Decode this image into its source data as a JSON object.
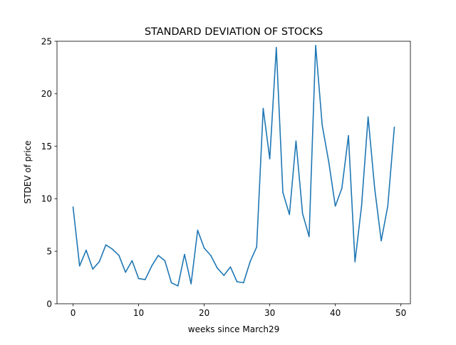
{
  "chart_data": {
    "type": "line",
    "title": "STANDARD DEVIATION OF STOCKS",
    "xlabel": "weeks since March29",
    "ylabel": "STDEV of price",
    "xlim": [
      -2.45,
      51.45
    ],
    "ylim": [
      0,
      25
    ],
    "xticks": [
      0,
      10,
      20,
      30,
      40,
      50
    ],
    "yticks": [
      0,
      5,
      10,
      15,
      20,
      25
    ],
    "grid": false,
    "series": [
      {
        "color": "#1f77b4",
        "x": [
          0,
          1,
          2,
          3,
          4,
          5,
          6,
          7,
          8,
          9,
          10,
          11,
          12,
          13,
          14,
          15,
          16,
          17,
          18,
          19,
          20,
          21,
          22,
          23,
          24,
          25,
          26,
          27,
          28,
          29,
          30,
          31,
          32,
          33,
          34,
          35,
          36,
          37,
          38,
          39,
          40,
          41,
          42,
          43,
          44,
          45,
          46,
          47,
          48,
          49
        ],
        "y": [
          9.2,
          3.6,
          5.1,
          3.3,
          4.0,
          5.6,
          5.2,
          4.6,
          3.0,
          4.1,
          2.4,
          2.3,
          3.6,
          4.6,
          4.1,
          2.0,
          1.7,
          4.7,
          1.9,
          7.0,
          5.3,
          4.6,
          3.4,
          2.7,
          3.5,
          2.1,
          2.0,
          4.0,
          5.4,
          18.6,
          13.8,
          24.4,
          10.6,
          8.5,
          15.5,
          8.6,
          6.4,
          24.6,
          17.0,
          13.5,
          9.3,
          11.0,
          16.0,
          4.0,
          9.3,
          17.8,
          11.0,
          6.0,
          9.3,
          16.8
        ]
      }
    ]
  }
}
